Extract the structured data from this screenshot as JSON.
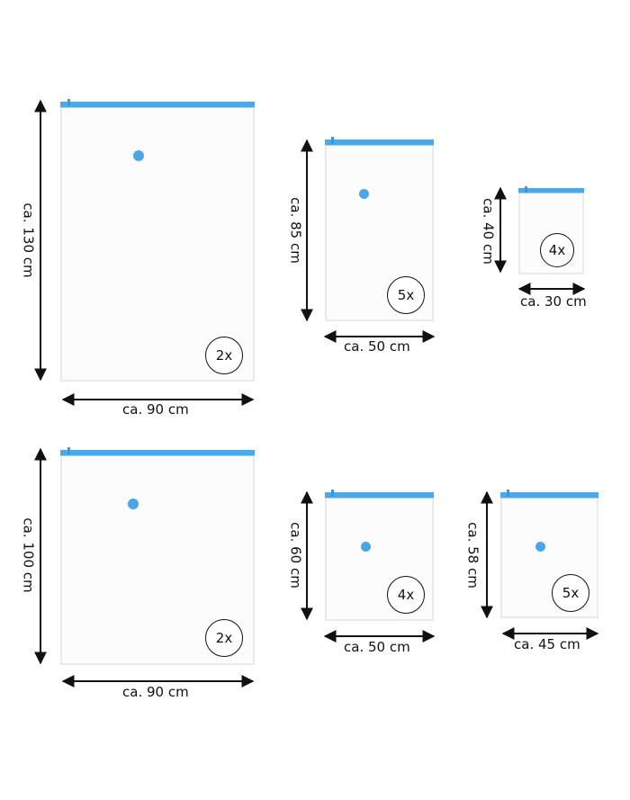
{
  "accent_colors": {
    "zipper": "#4aa9ec",
    "valve": "#49a7e9",
    "arrow": "#111111"
  },
  "bags": [
    {
      "id": "xxl-tall",
      "height_label": "ca. 130 cm",
      "width_label": "ca. 90 cm",
      "count": "2x"
    },
    {
      "id": "large",
      "height_label": "ca. 85 cm",
      "width_label": "ca. 50 cm",
      "count": "5x"
    },
    {
      "id": "small",
      "height_label": "ca. 40 cm",
      "width_label": "ca. 30 cm",
      "count": "4x"
    },
    {
      "id": "xxl",
      "height_label": "ca. 100 cm",
      "width_label": "ca. 90 cm",
      "count": "2x"
    },
    {
      "id": "medium",
      "height_label": "ca. 60 cm",
      "width_label": "ca. 50 cm",
      "count": "4x"
    },
    {
      "id": "medium-narrow",
      "height_label": "ca. 58 cm",
      "width_label": "ca. 45 cm",
      "count": "5x"
    }
  ]
}
